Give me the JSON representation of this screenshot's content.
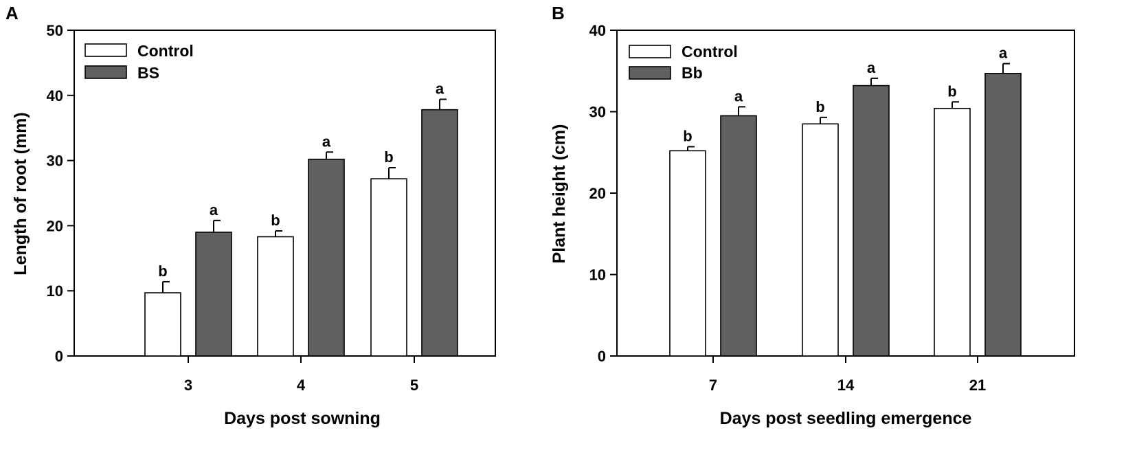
{
  "chart_data": [
    {
      "type": "bar",
      "panel_label": "A",
      "title": "",
      "categories": [
        "3",
        "4",
        "5"
      ],
      "series": [
        {
          "name": "Control",
          "color": "#ffffff",
          "values": [
            9.7,
            18.3,
            27.2
          ],
          "errors": [
            1.7,
            0.9,
            1.7
          ],
          "significance": [
            "b",
            "b",
            "b"
          ]
        },
        {
          "name": "BS",
          "color": "#606060",
          "values": [
            19.0,
            30.2,
            37.8
          ],
          "errors": [
            1.8,
            1.1,
            1.6
          ],
          "significance": [
            "a",
            "a",
            "a"
          ]
        }
      ],
      "xlabel": "Days post sowning",
      "ylabel": "Length of root (mm)",
      "ylim": [
        0,
        50
      ],
      "yticks": [
        "0",
        "10",
        "20",
        "30",
        "40",
        "50"
      ],
      "legend_position": "top-left",
      "grid": false
    },
    {
      "type": "bar",
      "panel_label": "B",
      "title": "",
      "categories": [
        "7",
        "14",
        "21"
      ],
      "series": [
        {
          "name": "Control",
          "color": "#ffffff",
          "values": [
            25.2,
            28.5,
            30.4
          ],
          "errors": [
            0.5,
            0.8,
            0.8
          ],
          "significance": [
            "b",
            "b",
            "b"
          ]
        },
        {
          "name": "Bb",
          "color": "#606060",
          "values": [
            29.5,
            33.2,
            34.7
          ],
          "errors": [
            1.1,
            0.9,
            1.2
          ],
          "significance": [
            "a",
            "a",
            "a"
          ]
        }
      ],
      "xlabel": "Days post seedling emergence",
      "ylabel": "Plant height (cm)",
      "ylim": [
        0,
        40
      ],
      "yticks": [
        "0",
        "10",
        "20",
        "30",
        "40"
      ],
      "legend_position": "top-left",
      "grid": false
    }
  ]
}
